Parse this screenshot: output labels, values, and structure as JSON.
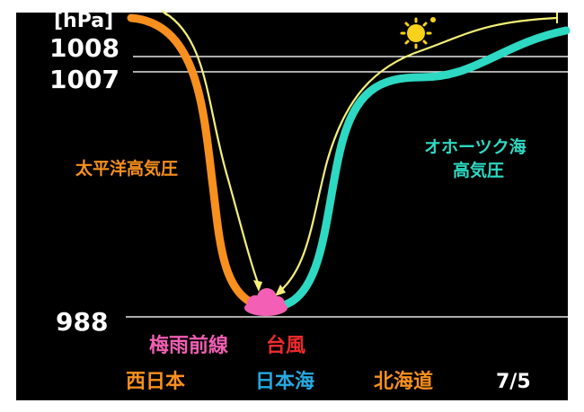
{
  "axis": {
    "unit": "[hPa]",
    "tick_1008": "1008",
    "tick_1007": "1007",
    "tick_988": "988"
  },
  "labels": {
    "pacific_high": "太平洋高気圧",
    "okhotsk_high_line1": "オホーツク海",
    "okhotsk_high_line2": "高気圧",
    "tsuyu_front": "梅雨前線",
    "typhoon": "台風"
  },
  "regions": {
    "west_japan": "西日本",
    "sea_of_japan": "日本海",
    "hokkaido": "北海道"
  },
  "date": "7/5",
  "icons": {
    "sun": "sun-icon",
    "cloud": "cloud-icon"
  },
  "colors": {
    "background": "#000000",
    "frame": "#ffffff",
    "pacific": "#f7901e",
    "okhotsk": "#2ed9c3",
    "arrow": "#f5f07a",
    "front": "#f25fb4",
    "typhoon": "#ee2b2b",
    "sea_of_japan": "#27a9e1",
    "sun": "#f7d21a"
  }
}
